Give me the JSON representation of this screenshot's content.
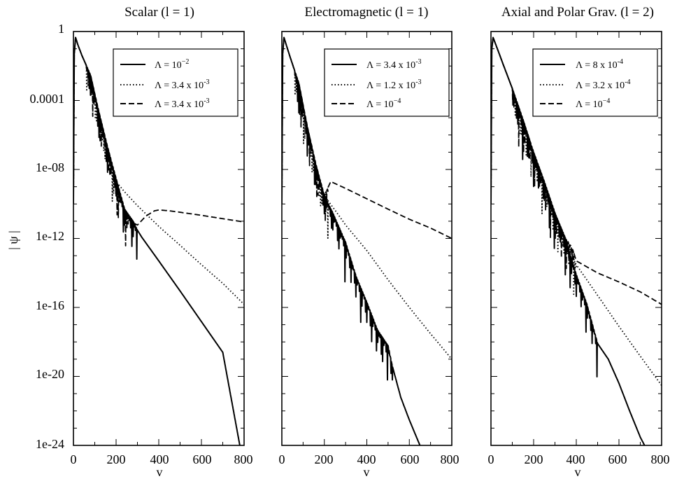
{
  "figure": {
    "ylabel": "| ψ |",
    "ytick_labels": [
      "1",
      "0.0001",
      "1e-08",
      "1e-12",
      "1e-16",
      "1e-20",
      "1e-24"
    ]
  },
  "chart_data": [
    {
      "type": "line",
      "title": "Scalar (l = 1)",
      "xlabel": "v",
      "ylabel": "| ψ |",
      "x_ticks": [
        0,
        200,
        400,
        600,
        800
      ],
      "xlim": [
        0,
        800
      ],
      "ylim": [
        1e-24,
        1
      ],
      "yscale": "log",
      "legend_position": "top-right",
      "series": [
        {
          "name": "Λ = 10^-2",
          "style": "solid",
          "points": [
            [
              0,
              1e-10
            ],
            [
              4,
              0.05
            ],
            [
              10,
              0.45
            ],
            [
              20,
              0.18
            ],
            [
              40,
              0.04
            ],
            [
              80,
              0.003
            ],
            [
              120,
              2e-05
            ],
            [
              160,
              2e-07
            ],
            [
              200,
              3e-09
            ],
            [
              240,
              5e-11
            ],
            [
              280,
              1e-11
            ],
            [
              300,
              3e-12
            ],
            [
              320,
              1.2e-12
            ],
            [
              400,
              5e-14
            ],
            [
              500,
              9e-16
            ],
            [
              600,
              1.5e-17
            ],
            [
              700,
              2.5e-19
            ],
            [
              780,
              1e-24
            ]
          ],
          "ringdown": [
            [
              60,
              0.01
            ],
            [
              300,
              1.5e-12
            ]
          ]
        },
        {
          "name": "Λ = 3.4 x 10^-3",
          "style": "dotted",
          "points": [
            [
              0,
              1e-10
            ],
            [
              4,
              0.05
            ],
            [
              10,
              0.45
            ],
            [
              20,
              0.18
            ],
            [
              40,
              0.04
            ],
            [
              80,
              0.003
            ],
            [
              120,
              2e-05
            ],
            [
              160,
              2e-07
            ],
            [
              200,
              2e-09
            ],
            [
              240,
              5e-10
            ],
            [
              300,
              8e-11
            ],
            [
              400,
              5e-12
            ],
            [
              500,
              4e-13
            ],
            [
              600,
              3e-14
            ],
            [
              700,
              2.5e-15
            ],
            [
              800,
              1.5e-16
            ]
          ],
          "ringdown": [
            [
              60,
              0.01
            ],
            [
              200,
              2e-09
            ]
          ]
        },
        {
          "name": "Λ = 3.4 x 10^-3",
          "style": "dashed",
          "points": [
            [
              0,
              1e-10
            ],
            [
              4,
              0.05
            ],
            [
              10,
              0.45
            ],
            [
              20,
              0.18
            ],
            [
              40,
              0.04
            ],
            [
              80,
              0.003
            ],
            [
              120,
              2e-05
            ],
            [
              160,
              2e-07
            ],
            [
              200,
              2e-09
            ],
            [
              240,
              3e-11
            ],
            [
              280,
              8e-12
            ],
            [
              300,
              6e-12
            ],
            [
              340,
              2e-11
            ],
            [
              380,
              4e-11
            ],
            [
              400,
              4.5e-11
            ],
            [
              450,
              4e-11
            ],
            [
              500,
              3.3e-11
            ],
            [
              600,
              2.2e-11
            ],
            [
              700,
              1.4e-11
            ],
            [
              800,
              9e-12
            ]
          ],
          "ringdown": [
            [
              60,
              0.01
            ],
            [
              280,
              1e-11
            ]
          ]
        }
      ]
    },
    {
      "type": "line",
      "title": "Electromagnetic (l = 1)",
      "xlabel": "v",
      "ylabel": "| ψ |",
      "x_ticks": [
        0,
        200,
        400,
        600,
        800
      ],
      "xlim": [
        0,
        800
      ],
      "ylim": [
        1e-24,
        1
      ],
      "yscale": "log",
      "legend_position": "top-right",
      "series": [
        {
          "name": "Λ = 3.4 x 10^-3",
          "style": "solid",
          "points": [
            [
              0,
              1e-10
            ],
            [
              4,
              0.05
            ],
            [
              10,
              0.45
            ],
            [
              20,
              0.18
            ],
            [
              40,
              0.03
            ],
            [
              80,
              0.001
            ],
            [
              120,
              3e-06
            ],
            [
              160,
              2e-08
            ],
            [
              200,
              3e-10
            ],
            [
              240,
              3e-11
            ],
            [
              300,
              6e-13
            ],
            [
              350,
              6e-15
            ],
            [
              400,
              2e-16
            ],
            [
              450,
              5e-18
            ],
            [
              500,
              6e-19
            ],
            [
              520,
              4e-20
            ],
            [
              560,
              6e-22
            ],
            [
              600,
              3e-23
            ],
            [
              650,
              1e-24
            ]
          ],
          "ringdown": [
            [
              60,
              0.01
            ],
            [
              520,
              1e-19
            ]
          ]
        },
        {
          "name": "Λ = 1.2 x 10^-3",
          "style": "dotted",
          "points": [
            [
              0,
              1e-10
            ],
            [
              4,
              0.05
            ],
            [
              10,
              0.45
            ],
            [
              20,
              0.18
            ],
            [
              40,
              0.03
            ],
            [
              80,
              0.001
            ],
            [
              120,
              3e-06
            ],
            [
              160,
              2e-08
            ],
            [
              200,
              3e-10
            ],
            [
              260,
              3e-11
            ],
            [
              300,
              6e-12
            ],
            [
              400,
              2e-13
            ],
            [
              500,
              4e-15
            ],
            [
              600,
              1e-16
            ],
            [
              700,
              3e-18
            ],
            [
              800,
              1e-19
            ]
          ],
          "ringdown": [
            [
              60,
              0.01
            ],
            [
              220,
              1e-10
            ]
          ]
        },
        {
          "name": "Λ = 10^-4",
          "style": "dashed",
          "points": [
            [
              0,
              1e-10
            ],
            [
              4,
              0.05
            ],
            [
              10,
              0.45
            ],
            [
              20,
              0.18
            ],
            [
              40,
              0.03
            ],
            [
              80,
              0.001
            ],
            [
              120,
              3e-06
            ],
            [
              160,
              2e-08
            ],
            [
              200,
              3e-10
            ],
            [
              230,
              2e-09
            ],
            [
              300,
              8e-10
            ],
            [
              400,
              2e-10
            ],
            [
              500,
              5e-11
            ],
            [
              600,
              1.3e-11
            ],
            [
              700,
              4e-12
            ],
            [
              800,
              1e-12
            ]
          ],
          "ringdown": [
            [
              60,
              0.01
            ],
            [
              220,
              1e-09
            ]
          ]
        }
      ]
    },
    {
      "type": "line",
      "title": "Axial and Polar Grav. (l = 2)",
      "xlabel": "v",
      "ylabel": "| ψ |",
      "x_ticks": [
        0,
        200,
        400,
        600,
        800
      ],
      "xlim": [
        0,
        800
      ],
      "ylim": [
        1e-24,
        1
      ],
      "yscale": "log",
      "legend_position": "top-right",
      "series": [
        {
          "name": "Λ = 8 x 10^-4",
          "style": "solid",
          "points": [
            [
              0,
              1e-10
            ],
            [
              4,
              0.1
            ],
            [
              10,
              0.45
            ],
            [
              30,
              0.1
            ],
            [
              60,
              0.01
            ],
            [
              100,
              0.0005
            ],
            [
              150,
              8e-06
            ],
            [
              200,
              1e-07
            ],
            [
              250,
              2e-09
            ],
            [
              300,
              3e-11
            ],
            [
              350,
              8e-13
            ],
            [
              400,
              8e-15
            ],
            [
              450,
              1.5e-16
            ],
            [
              500,
              8e-19
            ],
            [
              550,
              1e-19
            ],
            [
              600,
              4e-21
            ],
            [
              650,
              1e-22
            ],
            [
              700,
              3e-24
            ],
            [
              720,
              1e-24
            ]
          ],
          "ringdown": [
            [
              100,
              0.0005
            ],
            [
              500,
              2e-18
            ]
          ]
        },
        {
          "name": "Λ = 3.2 x 10^-4",
          "style": "dotted",
          "points": [
            [
              0,
              1e-10
            ],
            [
              4,
              0.1
            ],
            [
              10,
              0.45
            ],
            [
              30,
              0.1
            ],
            [
              60,
              0.01
            ],
            [
              100,
              0.0005
            ],
            [
              150,
              8e-06
            ],
            [
              200,
              1e-07
            ],
            [
              250,
              2e-09
            ],
            [
              300,
              3e-11
            ],
            [
              350,
              1e-12
            ],
            [
              400,
              3e-14
            ],
            [
              500,
              5e-16
            ],
            [
              600,
              8e-18
            ],
            [
              700,
              1.5e-19
            ],
            [
              800,
              3e-21
            ]
          ],
          "ringdown": [
            [
              100,
              0.0005
            ],
            [
              400,
              3e-14
            ]
          ]
        },
        {
          "name": "Λ = 10^-4",
          "style": "dashed",
          "points": [
            [
              0,
              1e-10
            ],
            [
              4,
              0.1
            ],
            [
              10,
              0.45
            ],
            [
              30,
              0.1
            ],
            [
              60,
              0.01
            ],
            [
              100,
              0.0005
            ],
            [
              150,
              8e-06
            ],
            [
              200,
              1e-07
            ],
            [
              250,
              2e-09
            ],
            [
              300,
              3e-11
            ],
            [
              350,
              1e-12
            ],
            [
              380,
              3e-13
            ],
            [
              400,
              5e-14
            ],
            [
              500,
              1e-14
            ],
            [
              600,
              3e-15
            ],
            [
              700,
              8e-16
            ],
            [
              800,
              1.5e-16
            ]
          ],
          "ringdown": [
            [
              100,
              0.0005
            ],
            [
              390,
              8e-14
            ]
          ]
        }
      ]
    }
  ]
}
